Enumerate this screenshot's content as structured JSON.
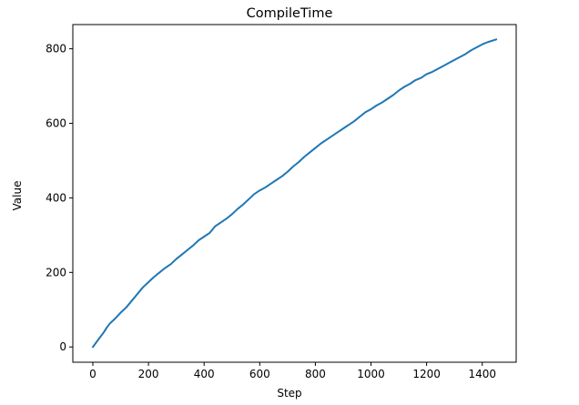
{
  "chart_data": {
    "type": "line",
    "title": "CompileTime",
    "xlabel": "Step",
    "ylabel": "Value",
    "xlim": [
      -72,
      1522
    ],
    "ylim": [
      -41,
      865
    ],
    "xticks": [
      0,
      200,
      400,
      600,
      800,
      1000,
      1200,
      1400
    ],
    "yticks": [
      0,
      200,
      400,
      600,
      800
    ],
    "grid": false,
    "legend": "none",
    "series": [
      {
        "color": "#1f77b4",
        "x": [
          0,
          20,
          40,
          50,
          60,
          80,
          100,
          120,
          140,
          160,
          180,
          200,
          220,
          240,
          260,
          280,
          300,
          320,
          340,
          360,
          380,
          400,
          420,
          440,
          460,
          480,
          500,
          520,
          540,
          560,
          580,
          600,
          620,
          640,
          660,
          680,
          700,
          720,
          740,
          760,
          780,
          800,
          820,
          840,
          860,
          880,
          900,
          920,
          940,
          960,
          980,
          1000,
          1020,
          1040,
          1060,
          1080,
          1100,
          1120,
          1140,
          1160,
          1180,
          1200,
          1220,
          1240,
          1260,
          1280,
          1300,
          1320,
          1340,
          1360,
          1380,
          1400,
          1420,
          1450
        ],
        "y": [
          0,
          20,
          40,
          52,
          62,
          76,
          92,
          106,
          124,
          142,
          160,
          174,
          188,
          200,
          212,
          222,
          236,
          248,
          260,
          272,
          286,
          296,
          306,
          324,
          334,
          344,
          356,
          370,
          382,
          396,
          410,
          420,
          428,
          438,
          448,
          458,
          470,
          484,
          496,
          510,
          522,
          534,
          546,
          556,
          566,
          576,
          586,
          596,
          606,
          618,
          630,
          638,
          648,
          656,
          666,
          676,
          688,
          698,
          706,
          716,
          722,
          732,
          738,
          746,
          754,
          762,
          770,
          778,
          786,
          796,
          804,
          812,
          818,
          825
        ]
      }
    ]
  }
}
